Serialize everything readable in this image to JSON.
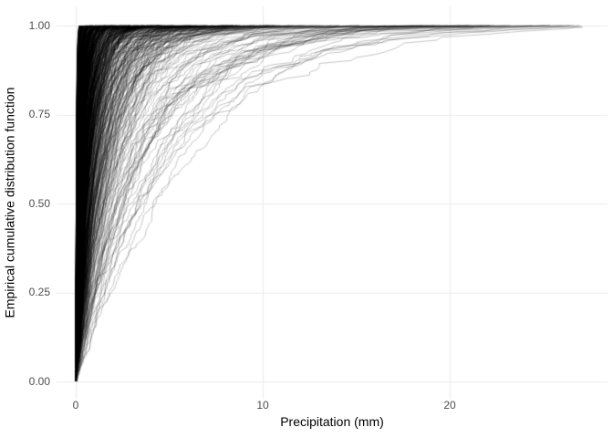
{
  "chart_data": {
    "type": "line",
    "subtype": "ecdf-ensemble",
    "title": "",
    "xlabel": "Precipitation (mm)",
    "ylabel": "Empirical cumulative distribution function",
    "xlim": [
      -1.0,
      28.5
    ],
    "ylim": [
      -0.05,
      1.05
    ],
    "x_range_data": [
      0,
      27.1
    ],
    "y_range_data": [
      0,
      1
    ],
    "xticks": {
      "values": [
        0,
        10,
        20
      ],
      "labels": [
        "0",
        "10",
        "20"
      ]
    },
    "yticks": {
      "values": [
        0,
        0.25,
        0.5,
        0.75,
        1.0
      ],
      "labels": [
        "0.00",
        "0.25",
        "0.50",
        "0.75",
        "1.00"
      ]
    },
    "grid": "major-only",
    "legend": "none",
    "series_style": {
      "color": "#000000",
      "alpha": 0.3,
      "line_width": 0.75
    },
    "ensemble": {
      "description": "hundreds of overlapping empirical CDF curves of daily precipitation, one per station/sample; steep rise near 0 mm, long right tails",
      "n_curves": 700,
      "model": "exponential-ecdf",
      "points_per_curve": [
        120,
        365
      ],
      "scale_lognormal": {
        "median": 0.35,
        "sigma_log": 1.15,
        "min": 0.04,
        "max": 5.5
      },
      "x_clip": 27.1,
      "seed": 7
    },
    "colors": {
      "background": "#ffffff",
      "gridline": "#ebebeb",
      "tick_label": "#4d4d4d",
      "axis_title": "#000000",
      "curve": "#000000"
    }
  }
}
